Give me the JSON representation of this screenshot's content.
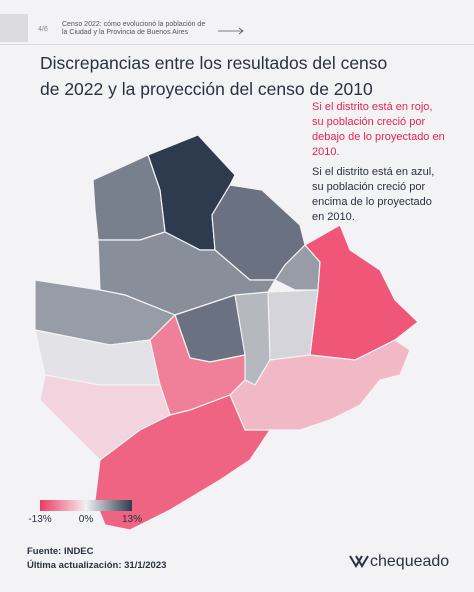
{
  "header": {
    "page": "4/6",
    "subtitle": "Censo 2022: cómo evolucionó la población de la Ciudad y la Provincia de Buenos Aires"
  },
  "title": "Discrepancias entre los resultados del censo de 2022 y la proyección del censo de 2010",
  "note_red": "Si el distrito está en rojo, su población creció por debajo de lo proyectado en 2010.",
  "note_blue": "Si el distrito está en azul, su población creció por encima de lo proyectado en 2010.",
  "legend": {
    "ticks": [
      {
        "value": -13,
        "label": "-13%"
      },
      {
        "value": 0,
        "label": "0%"
      },
      {
        "value": 13,
        "label": "13%"
      }
    ],
    "colors": [
      "#ee3a62",
      "#f2f0f3",
      "#2e3a4e"
    ]
  },
  "districts": [
    13,
    8,
    9,
    6,
    -11,
    2,
    4,
    7,
    6,
    9,
    1,
    -8,
    -4,
    -2,
    -10
  ],
  "footer": {
    "source": "Fuente: INDEC",
    "updated": "Última actualización: 31/1/2023",
    "brand": "chequeado"
  }
}
